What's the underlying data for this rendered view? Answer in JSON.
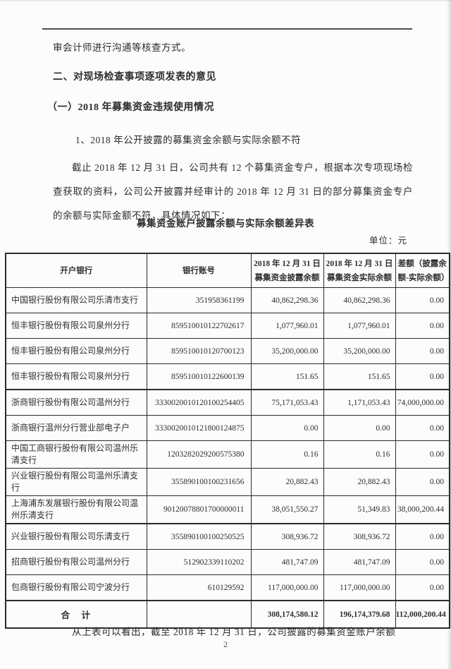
{
  "document": {
    "intro_line": "审会计师进行沟通等核查方式。",
    "section_heading": "二、对现场检查事项逐项发表的意见",
    "subsection_heading": "（一）2018 年募集资金违规使用情况",
    "item_heading": "1、2018 年公开披露的募集资金余额与实际余额不符",
    "paragraph": "截止 2018 年 12 月 31 日，公司共有 12 个募集资金专户，根据本次专项现场检查获取的资料，公司公开披露并经审计的 2018 年 12 月 31 日的部分募集资金专户的余额与实际金额不符，具体情况如下：",
    "table_title": "募集资金账户披露余额与实际余额差异表",
    "unit_label": "单位：元",
    "closing_line": "从上表可以看出，截至 2018 年 12 月 31 日，公司披露的募集资金账户余额",
    "page_number": "2"
  },
  "table": {
    "headers": [
      [
        "开户银行"
      ],
      [
        "银行账号"
      ],
      [
        "2018 年 12 月 31 日",
        "募集资金披露余额"
      ],
      [
        "2018 年 12 月 31 日",
        "募集资金实际余额"
      ],
      [
        "差额（披露余",
        "额-实际余额）"
      ]
    ],
    "rows": [
      {
        "bank": "中国银行股份有限公司乐清市支行",
        "account": "351958361199",
        "disclosed": "40,862,298.36",
        "actual": "40,862,298.36",
        "diff": "0.00"
      },
      {
        "bank": "恒丰银行股份有限公司泉州分行",
        "account": "859510010122702617",
        "disclosed": "1,077,960.01",
        "actual": "1,077,960.01",
        "diff": "0.00"
      },
      {
        "bank": "恒丰银行股份有限公司泉州分行",
        "account": "859510010120700123",
        "disclosed": "35,200,000.00",
        "actual": "35,200,000.00",
        "diff": "0.00"
      },
      {
        "bank": "恒丰银行股份有限公司泉州分行",
        "account": "859510010122600139",
        "disclosed": "151.65",
        "actual": "151.65",
        "diff": "0.00"
      },
      {
        "bank": "浙商银行股份有限公司温州分行",
        "account": "3330020010120100254405",
        "disclosed": "75,171,053.43",
        "actual": "1,171,053.43",
        "diff": "74,000,000.00"
      },
      {
        "bank": "浙商银行温州分行营业部电子户",
        "account": "3330020010121800124875",
        "disclosed": "0.00",
        "actual": "0.00",
        "diff": "0.00"
      },
      {
        "bank": "中国工商银行股份有限公司温州乐清支行",
        "account": "1203282029200575380",
        "disclosed": "0.16",
        "actual": "0.16",
        "diff": "0.00"
      },
      {
        "bank": "兴业银行股份有限公司温州乐清支行",
        "account": "355890100100231656",
        "disclosed": "20,882.43",
        "actual": "20,882.43",
        "diff": "0.00"
      },
      {
        "bank": "上海浦东发展银行股份有限公司温州乐清支行",
        "account": "90120078801700000011",
        "disclosed": "38,051,550.27",
        "actual": "51,349.83",
        "diff": "38,000,200.44"
      },
      {
        "bank": "兴业银行股份有限公司乐清支行",
        "account": "355890100100250525",
        "disclosed": "308,936.72",
        "actual": "308,936.72",
        "diff": "0.00"
      },
      {
        "bank": "招商银行股份有限公司温州分行",
        "account": "512902339110202",
        "disclosed": "481,747.09",
        "actual": "481,747.09",
        "diff": "0.00"
      },
      {
        "bank": "包商银行股份有限公司宁波分行",
        "account": "610129592",
        "disclosed": "117,000,000.00",
        "actual": "117,000,000.00",
        "diff": "0.00"
      }
    ],
    "total": {
      "label": "合　计",
      "account": "",
      "disclosed": "308,174,580.12",
      "actual": "196,174,379.68",
      "diff": "112,000,200.44"
    }
  },
  "colors": {
    "text": "#2d2d2d",
    "border": "#2b2b2b",
    "background": "#fcfcfc"
  }
}
